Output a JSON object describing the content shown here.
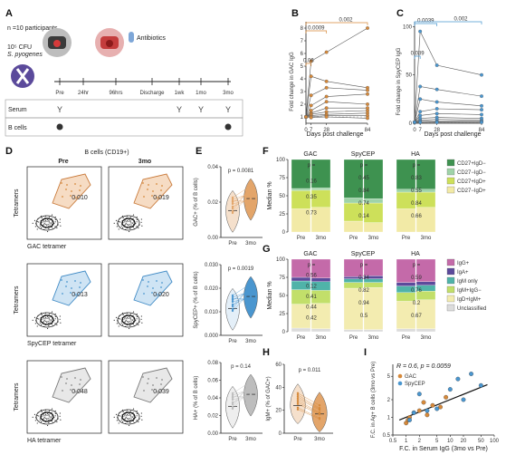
{
  "panel_letters": [
    "A",
    "B",
    "C",
    "D",
    "E",
    "F",
    "G",
    "H",
    "I"
  ],
  "panelA": {
    "n_participants": "n =10 participants",
    "inoculum_dose": "10⁵ CFU",
    "inoculum_organism": "S. pyogenes",
    "antibiotics": "Antibiotics",
    "timeline": [
      "Pre",
      "24hr",
      "96hrs",
      "Discharge",
      "1wk",
      "1mo",
      "3mo"
    ],
    "rows": [
      "Serum",
      "B cells"
    ]
  },
  "panelB": {
    "ylabel": "Fold change in GAC IgG",
    "xlabel": "Days post challenge",
    "pvalues": [
      "0.0009",
      "0.002",
      "0.06"
    ],
    "yticks": [
      "1",
      "2",
      "3",
      "4",
      "5",
      "6",
      "7",
      "8"
    ],
    "xticks": [
      "0",
      "7",
      "28",
      "84"
    ],
    "color": "#d6893a"
  },
  "panelC": {
    "ylabel": "Fold change in SpyCEP IgG",
    "xlabel": "Days post challenge",
    "pvalues": [
      "0.0039",
      "0.002",
      "0.039"
    ],
    "yticks": [
      "0",
      "50",
      "100"
    ],
    "xticks": [
      "0",
      "7",
      "28",
      "84"
    ],
    "color": "#4a96cf"
  },
  "panelD": {
    "title": "B cells (CD19+)",
    "cols": [
      "Pre",
      "3mo"
    ],
    "ylabel": "Tetramers",
    "rows": [
      {
        "xlabel": "GAC tetramer",
        "pre": "0.010",
        "post": "0.019"
      },
      {
        "xlabel": "SpyCEP tetramer",
        "pre": "0.013",
        "post": "0.020"
      },
      {
        "xlabel": "HA tetramer",
        "pre": "0.048",
        "post": "0.039"
      }
    ]
  },
  "panelE": {
    "plots": [
      {
        "ylabel": "GAC+ (% of B cells)",
        "p": "p = 0.0081",
        "yticks": [
          "0.00",
          "0.02",
          "0.04"
        ]
      },
      {
        "ylabel": "SpyCEP+ (% of B cells)",
        "p": "p = 0.0019",
        "yticks": [
          "0.000",
          "0.010",
          "0.020",
          "0.030"
        ]
      },
      {
        "ylabel": "HA+ (% of B cells)",
        "p": "p = 0.14",
        "yticks": [
          "0.00",
          "0.02",
          "0.04",
          "0.06",
          "0.08"
        ]
      }
    ],
    "xticks": [
      "Pre",
      "3mo"
    ]
  },
  "panelF": {
    "ylabel": "Median %",
    "groups": [
      "GAC",
      "SpyCEP",
      "HA"
    ],
    "xticks": [
      "Pre",
      "3mo"
    ],
    "yticks": [
      "0",
      "25",
      "50",
      "75",
      "100"
    ],
    "pvals": {
      "GAC": [
        "p =",
        "0.16",
        "0.35",
        "0.73"
      ],
      "SpyCEP": [
        "p =",
        "0.45",
        "0.84",
        "0.74",
        "0.14"
      ],
      "HA": [
        "p =",
        "0.83",
        "0.55",
        "0.84",
        "0.66"
      ]
    },
    "legend": [
      {
        "label": "CD27+IgD−",
        "color": "#3e9250"
      },
      {
        "label": "CD27−IgD−",
        "color": "#9fd3a8"
      },
      {
        "label": "CD27+IgD+",
        "color": "#cde05a"
      },
      {
        "label": "CD27−IgD+",
        "color": "#f2eaa6"
      }
    ]
  },
  "panelG": {
    "ylabel": "Median %",
    "groups": [
      "GAC",
      "SpyCEP",
      "HA"
    ],
    "xticks": [
      "Pre",
      "3mo"
    ],
    "yticks": [
      "0",
      "25",
      "50",
      "75",
      "100"
    ],
    "pvals": {
      "GAC": [
        "p =",
        "0.56",
        "0.12",
        "0.41",
        "0.44",
        "0.42"
      ],
      "SpyCEP": [
        "p =",
        "0.34",
        "0.82",
        "0.94",
        "0.5"
      ],
      "HA": [
        "p =",
        "0.59",
        "0.76",
        "0.2",
        "0.67"
      ]
    },
    "legend": [
      {
        "label": "IgG+",
        "color": "#c46aa9"
      },
      {
        "label": "IgA+",
        "color": "#5b4a9b"
      },
      {
        "label": "IgM only",
        "color": "#4fb3a9"
      },
      {
        "label": "IgM+IgG−",
        "color": "#c2df6a"
      },
      {
        "label": "IgD+IgM+",
        "color": "#f3ecb0"
      },
      {
        "label": "Unclassified",
        "color": "#dcdcdc"
      }
    ]
  },
  "panelH": {
    "ylabel": "IgM+ (% of GAC+)",
    "p": "p = 0.011",
    "yticks": [
      "0",
      "20",
      "40",
      "60"
    ],
    "xticks": [
      "Pre",
      "3mo"
    ]
  },
  "panelI": {
    "stat": "R = 0.6, p = 0.0059",
    "ylabel": "F.C. in Ag+ B cells (3mo vs Pre)",
    "xlabel": "F.C. in Serum IgG (3mo vs Pre)",
    "xticks": [
      "0.5",
      "1",
      "2",
      "5",
      "10",
      "20",
      "50",
      "100"
    ],
    "yticks": [
      "0.5",
      "1",
      "2",
      "5"
    ],
    "legend": [
      {
        "label": "GAC",
        "color": "#d6893a"
      },
      {
        "label": "SpyCEP",
        "color": "#4a96cf"
      }
    ]
  },
  "chart_data": [
    {
      "type": "line",
      "ylabel": "Fold change in GAC IgG",
      "xlabel": "Days post challenge",
      "x": [
        0,
        7,
        28,
        84
      ],
      "ylim": [
        0.5,
        8.5
      ],
      "series": [
        {
          "values": [
            1,
            5.4,
            6.1,
            8.0
          ]
        },
        {
          "values": [
            1,
            4.2,
            3.8,
            3.3
          ]
        },
        {
          "values": [
            1,
            2.7,
            3.3,
            3.1
          ]
        },
        {
          "values": [
            1,
            1.9,
            2.6,
            2.8
          ]
        },
        {
          "values": [
            1,
            1.5,
            2.2,
            2.0
          ]
        },
        {
          "values": [
            1,
            1.3,
            1.7,
            1.7
          ]
        },
        {
          "values": [
            1,
            1.2,
            1.4,
            1.5
          ]
        },
        {
          "values": [
            1,
            1.1,
            1.2,
            1.3
          ]
        },
        {
          "values": [
            1,
            1.0,
            1.1,
            1.1
          ]
        },
        {
          "values": [
            1,
            0.95,
            1.0,
            0.9
          ]
        }
      ]
    },
    {
      "type": "line",
      "ylabel": "Fold change in SpyCEP IgG",
      "xlabel": "Days post challenge",
      "x": [
        0,
        7,
        28,
        84
      ],
      "ylim": [
        0,
        105
      ],
      "series": [
        {
          "values": [
            1,
            95,
            60,
            50
          ]
        },
        {
          "values": [
            1,
            38,
            35,
            28
          ]
        },
        {
          "values": [
            1,
            25,
            22,
            18
          ]
        },
        {
          "values": [
            1,
            12,
            15,
            14
          ]
        },
        {
          "values": [
            1,
            8,
            10,
            9
          ]
        },
        {
          "values": [
            1,
            5,
            6,
            5
          ]
        },
        {
          "values": [
            1,
            3,
            4,
            3
          ]
        },
        {
          "values": [
            1,
            2,
            2,
            2
          ]
        },
        {
          "values": [
            1,
            1,
            1.5,
            1.2
          ]
        },
        {
          "values": [
            1,
            1,
            1,
            1
          ]
        }
      ]
    },
    {
      "type": "bar",
      "ylabel": "Median %",
      "categories": [
        "GAC Pre",
        "GAC 3mo",
        "SpyCEP Pre",
        "SpyCEP 3mo",
        "HA Pre",
        "HA 3mo"
      ],
      "series": [
        {
          "name": "CD27−IgD+",
          "values": [
            32,
            34,
            15,
            13,
            32,
            34
          ]
        },
        {
          "name": "CD27+IgD+",
          "values": [
            25,
            24,
            25,
            27,
            23,
            21
          ]
        },
        {
          "name": "CD27−IgD−",
          "values": [
            3,
            3,
            7,
            6,
            4,
            4
          ]
        },
        {
          "name": "CD27+IgD−",
          "values": [
            40,
            39,
            53,
            54,
            41,
            41
          ]
        }
      ],
      "ylim": [
        0,
        100
      ]
    },
    {
      "type": "bar",
      "ylabel": "Median %",
      "categories": [
        "GAC Pre",
        "GAC 3mo",
        "SpyCEP Pre",
        "SpyCEP 3mo",
        "HA Pre",
        "HA 3mo"
      ],
      "series": [
        {
          "name": "Unclassified",
          "values": [
            5,
            4,
            3,
            3,
            4,
            4
          ]
        },
        {
          "name": "IgD+IgM+",
          "values": [
            33,
            35,
            57,
            58,
            38,
            40
          ]
        },
        {
          "name": "IgM+IgG−",
          "values": [
            20,
            18,
            8,
            7,
            12,
            12
          ]
        },
        {
          "name": "IgM only",
          "values": [
            12,
            12,
            5,
            5,
            9,
            8
          ]
        },
        {
          "name": "IgA+",
          "values": [
            5,
            5,
            3,
            4,
            5,
            5
          ]
        },
        {
          "name": "IgG+",
          "values": [
            25,
            26,
            24,
            23,
            32,
            31
          ]
        }
      ],
      "ylim": [
        0,
        100
      ]
    },
    {
      "type": "scatter",
      "ylabel": "F.C. in Ag+ B cells (3mo vs Pre)",
      "xlabel": "F.C. in Serum IgG (3mo vs Pre)",
      "xscale": "log",
      "yscale": "log",
      "series": [
        {
          "name": "GAC",
          "x": [
            1.0,
            1.2,
            1.5,
            2.0,
            2.5,
            3.0,
            4.0,
            6.0,
            8.0,
            1.1
          ],
          "y": [
            0.8,
            1.0,
            1.2,
            1.3,
            1.8,
            1.1,
            1.6,
            1.5,
            2.2,
            0.9
          ]
        },
        {
          "name": "SpyCEP",
          "x": [
            1.5,
            2.0,
            5.0,
            10.0,
            15.0,
            20.0,
            30.0,
            50.0,
            1.2,
            3.0
          ],
          "y": [
            1.2,
            2.5,
            1.4,
            3.0,
            4.5,
            2.0,
            5.5,
            3.5,
            0.9,
            1.3
          ]
        }
      ]
    }
  ]
}
